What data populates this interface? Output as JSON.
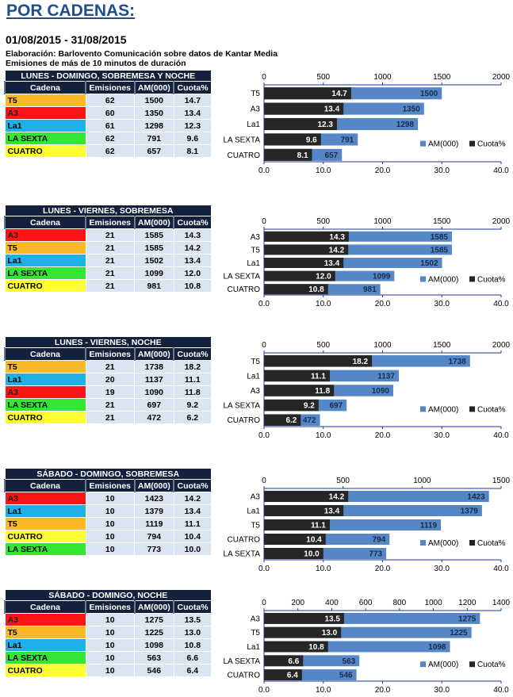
{
  "title": "POR CADENAS:",
  "period": "01/08/2015 - 31/08/2015",
  "notes": [
    "Elaboración: Barlovento Comunicación sobre datos de Kantar Media",
    "Emisiones de más de 10 minutos de duración"
  ],
  "columns": [
    "Cadena",
    "Emisiones",
    "AM(000)",
    "Cuota%"
  ],
  "channel_colors": {
    "T5": "#fbb829",
    "A3": "#fe1414",
    "La1": "#1fb0e8",
    "LA SEXTA": "#33e633",
    "CUATRO": "#ffff33"
  },
  "bar_colors": {
    "am": "#5586c6",
    "cuota": "#262626"
  },
  "legend": [
    "AM(000)",
    "Cuota%"
  ],
  "sections": [
    {
      "title": "LUNES - DOMINGO, SOBREMESA Y NOCHE",
      "rows": [
        [
          "T5",
          "62",
          "1500",
          "14.7"
        ],
        [
          "A3",
          "60",
          "1350",
          "13.4"
        ],
        [
          "La1",
          "61",
          "1298",
          "12.3"
        ],
        [
          "LA SEXTA",
          "62",
          "791",
          "9.6"
        ],
        [
          "CUATRO",
          "62",
          "657",
          "8.1"
        ]
      ],
      "chart_data": {
        "type": "bar",
        "categories": [
          "T5",
          "A3",
          "La1",
          "LA SEXTA",
          "CUATRO"
        ],
        "series": [
          {
            "name": "AM(000)",
            "values": [
              1500,
              1350,
              1298,
              791,
              657
            ],
            "axis": "top",
            "range": [
              0,
              2000
            ],
            "ticks": [
              0,
              500,
              1000,
              1500,
              2000
            ]
          },
          {
            "name": "Cuota%",
            "values": [
              14.7,
              13.4,
              12.3,
              9.6,
              8.1
            ],
            "axis": "bottom",
            "range": [
              0,
              40
            ],
            "ticks": [
              "0.0",
              "10.0",
              "20.0",
              "30.0",
              "40.0"
            ]
          }
        ]
      }
    },
    {
      "title": "LUNES - VIERNES, SOBREMESA",
      "rows": [
        [
          "A3",
          "21",
          "1585",
          "14.3"
        ],
        [
          "T5",
          "21",
          "1585",
          "14.2"
        ],
        [
          "La1",
          "21",
          "1502",
          "13.4"
        ],
        [
          "LA SEXTA",
          "21",
          "1099",
          "12.0"
        ],
        [
          "CUATRO",
          "21",
          "981",
          "10.8"
        ]
      ],
      "chart_data": {
        "type": "bar",
        "categories": [
          "A3",
          "T5",
          "La1",
          "LA SEXTA",
          "CUATRO"
        ],
        "series": [
          {
            "name": "AM(000)",
            "values": [
              1585,
              1585,
              1502,
              1099,
              981
            ],
            "axis": "top",
            "range": [
              0,
              2000
            ],
            "ticks": [
              0,
              500,
              1000,
              1500,
              2000
            ]
          },
          {
            "name": "Cuota%",
            "values": [
              14.3,
              14.2,
              13.4,
              12.0,
              10.8
            ],
            "axis": "bottom",
            "range": [
              0,
              40
            ],
            "ticks": [
              "0.0",
              "10.0",
              "20.0",
              "30.0",
              "40.0"
            ]
          }
        ]
      }
    },
    {
      "title": "LUNES - VIERNES, NOCHE",
      "rows": [
        [
          "T5",
          "21",
          "1738",
          "18.2"
        ],
        [
          "La1",
          "20",
          "1137",
          "11.1"
        ],
        [
          "A3",
          "19",
          "1090",
          "11.8"
        ],
        [
          "LA SEXTA",
          "21",
          "697",
          "9.2"
        ],
        [
          "CUATRO",
          "21",
          "472",
          "6.2"
        ]
      ],
      "chart_data": {
        "type": "bar",
        "categories": [
          "T5",
          "La1",
          "A3",
          "LA SEXTA",
          "CUATRO"
        ],
        "series": [
          {
            "name": "AM(000)",
            "values": [
              1738,
              1137,
              1090,
              697,
              472
            ],
            "axis": "top",
            "range": [
              0,
              2000
            ],
            "ticks": [
              0,
              500,
              1000,
              1500,
              2000
            ]
          },
          {
            "name": "Cuota%",
            "values": [
              18.2,
              11.1,
              11.8,
              9.2,
              6.2
            ],
            "axis": "bottom",
            "range": [
              0,
              40
            ],
            "ticks": [
              "0.0",
              "10.0",
              "20.0",
              "30.0",
              "40.0"
            ]
          }
        ]
      }
    },
    {
      "title": "SÁBADO - DOMINGO, SOBREMESA",
      "rows": [
        [
          "A3",
          "10",
          "1423",
          "14.2"
        ],
        [
          "La1",
          "10",
          "1379",
          "13.4"
        ],
        [
          "T5",
          "10",
          "1119",
          "11.1"
        ],
        [
          "CUATRO",
          "10",
          "794",
          "10.4"
        ],
        [
          "LA SEXTA",
          "10",
          "773",
          "10.0"
        ]
      ],
      "chart_data": {
        "type": "bar",
        "categories": [
          "A3",
          "La1",
          "T5",
          "CUATRO",
          "LA SEXTA"
        ],
        "series": [
          {
            "name": "AM(000)",
            "values": [
              1423,
              1379,
              1119,
              794,
              773
            ],
            "axis": "top",
            "range": [
              0,
              1500
            ],
            "ticks": [
              0,
              500,
              1000,
              1500
            ]
          },
          {
            "name": "Cuota%",
            "values": [
              14.2,
              13.4,
              11.1,
              10.4,
              10.0
            ],
            "axis": "bottom",
            "range": [
              0,
              40
            ],
            "ticks": [
              "0.0",
              "10.0",
              "20.0",
              "30.0",
              "40.0"
            ]
          }
        ]
      }
    },
    {
      "title": "SÁBADO - DOMINGO, NOCHE",
      "rows": [
        [
          "A3",
          "10",
          "1275",
          "13.5"
        ],
        [
          "T5",
          "10",
          "1225",
          "13.0"
        ],
        [
          "La1",
          "10",
          "1098",
          "10.8"
        ],
        [
          "LA SEXTA",
          "10",
          "563",
          "6.6"
        ],
        [
          "CUATRO",
          "10",
          "546",
          "6.4"
        ]
      ],
      "chart_data": {
        "type": "bar",
        "categories": [
          "A3",
          "T5",
          "La1",
          "LA SEXTA",
          "CUATRO"
        ],
        "series": [
          {
            "name": "AM(000)",
            "values": [
              1275,
              1225,
              1098,
              563,
              546
            ],
            "axis": "top",
            "range": [
              0,
              1400
            ],
            "ticks": [
              0,
              200,
              400,
              600,
              800,
              1000,
              1200,
              1400
            ]
          },
          {
            "name": "Cuota%",
            "values": [
              13.5,
              13.0,
              10.8,
              6.6,
              6.4
            ],
            "axis": "bottom",
            "range": [
              0,
              40
            ],
            "ticks": [
              "0.0",
              "10.0",
              "20.0",
              "30.0",
              "40.0"
            ]
          }
        ]
      }
    }
  ]
}
